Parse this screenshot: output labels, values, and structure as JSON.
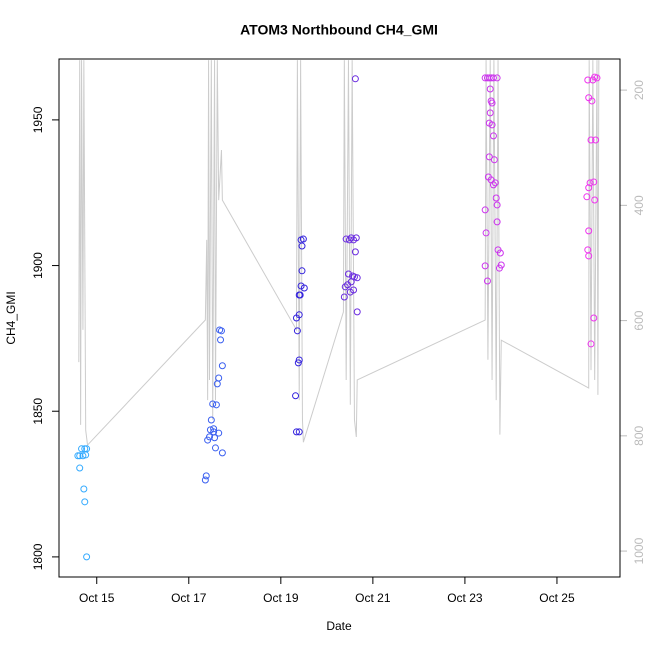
{
  "chart_data": {
    "type": "scatter",
    "title": "ATOM3 Northbound CH4_GMI",
    "x_label": "Date",
    "y_label": "CH4_GMI",
    "xlim": [
      14.18,
      26.37
    ],
    "xticks": [
      {
        "value": 15,
        "label": "Oct 15"
      },
      {
        "value": 17,
        "label": "Oct 17"
      },
      {
        "value": 19,
        "label": "Oct 19"
      },
      {
        "value": 21,
        "label": "Oct 21"
      },
      {
        "value": 23,
        "label": "Oct 23"
      },
      {
        "value": 25,
        "label": "Oct 25"
      }
    ],
    "ylim": [
      1793.1,
      1970.9
    ],
    "yticks": [
      1800,
      1850,
      1900,
      1950
    ],
    "y2lim": [
      1045,
      146
    ],
    "y2ticks": [
      200,
      400,
      600,
      800,
      1000
    ],
    "series": [
      {
        "color": "#33aaff",
        "x": [
          14.63,
          14.67,
          14.74,
          14.78,
          14.7,
          14.76,
          14.63,
          14.72,
          14.74,
          14.78,
          14.59
        ],
        "values": [
          1834.7,
          1837.1,
          1837.1,
          1837.1,
          1834.7,
          1835.0,
          1830.5,
          1823.3,
          1818.9,
          1800.0,
          1834.7
        ]
      },
      {
        "color": "#3a5ff0",
        "x": [
          17.36,
          17.38,
          17.41,
          17.45,
          17.47,
          17.49,
          17.52,
          17.54,
          17.56,
          17.58,
          17.6,
          17.62,
          17.65,
          17.67,
          17.69,
          17.71,
          17.73,
          17.73,
          17.54,
          17.65
        ],
        "values": [
          1826.4,
          1827.8,
          1840.1,
          1841.2,
          1843.6,
          1847.0,
          1852.5,
          1844.0,
          1840.9,
          1837.4,
          1852.2,
          1859.4,
          1861.4,
          1877.9,
          1874.5,
          1877.6,
          1865.6,
          1835.7,
          1842.9,
          1842.5
        ]
      },
      {
        "color": "#3322dd",
        "x": [
          19.32,
          19.34,
          19.36,
          19.38,
          19.4,
          19.34,
          19.4,
          19.4,
          19.4,
          19.42,
          19.44,
          19.46,
          19.44,
          19.46,
          19.49,
          19.51
        ],
        "values": [
          1855.3,
          1882.0,
          1877.6,
          1866.6,
          1867.6,
          1842.9,
          1842.9,
          1883.1,
          1889.9,
          1889.9,
          1893.0,
          1898.2,
          1908.8,
          1906.7,
          1909.1,
          1892.3
        ]
      },
      {
        "color": "#6a2be0",
        "x": [
          20.38,
          20.4,
          20.45,
          20.47,
          20.49,
          20.42,
          20.53,
          20.51,
          20.53,
          20.56,
          20.58,
          20.6,
          20.62,
          20.64,
          20.66,
          20.66,
          20.62,
          20.58
        ],
        "values": [
          1889.2,
          1892.7,
          1893.4,
          1897.1,
          1908.8,
          1909.1,
          1909.5,
          1890.9,
          1894.4,
          1896.4,
          1891.6,
          1896.1,
          1904.7,
          1909.5,
          1895.8,
          1884.1,
          1964.1,
          1908.8
        ]
      },
      {
        "color": "#cc33ee",
        "x": [
          23.44,
          23.49,
          23.53,
          23.57,
          23.62,
          23.7,
          23.44,
          23.46,
          23.44,
          23.49,
          23.51,
          23.53,
          23.55,
          23.57,
          23.53,
          23.59,
          23.62,
          23.57,
          23.62,
          23.66,
          23.64,
          23.68,
          23.7,
          23.7,
          23.72,
          23.77,
          23.79,
          23.75,
          23.59,
          23.55
        ],
        "values": [
          1964.4,
          1964.4,
          1964.4,
          1964.4,
          1964.4,
          1964.4,
          1919.1,
          1911.2,
          1899.9,
          1894.7,
          1930.4,
          1937.3,
          1960.6,
          1956.5,
          1948.9,
          1948.3,
          1944.5,
          1929.4,
          1927.7,
          1928.4,
          1936.3,
          1923.2,
          1920.8,
          1915.0,
          1905.4,
          1904.3,
          1900.2,
          1899.1,
          1955.8,
          1952.4
        ]
      },
      {
        "color": "#ee33ee",
        "x": [
          25.67,
          25.82,
          25.87,
          25.78,
          25.69,
          25.76,
          25.74,
          25.84,
          25.72,
          25.8,
          25.65,
          25.82,
          25.69,
          25.69,
          25.67,
          25.69,
          25.8,
          25.74
        ],
        "values": [
          1963.7,
          1964.7,
          1964.4,
          1963.7,
          1957.6,
          1956.5,
          1943.1,
          1943.1,
          1928.4,
          1928.7,
          1923.6,
          1922.5,
          1926.7,
          1911.9,
          1905.4,
          1903.3,
          1882.0,
          1873.1
        ]
      },
      {
        "type": "line",
        "axis": "y2",
        "color": "#cccccc",
        "x": [
          14.61,
          14.63,
          14.65,
          14.67,
          14.7,
          14.72,
          14.76,
          14.8,
          17.36,
          17.39,
          17.41,
          17.43,
          17.45,
          17.49,
          17.52,
          17.56,
          17.58,
          17.62,
          17.65,
          17.71,
          17.73,
          19.34,
          19.36,
          19.4,
          19.43,
          19.47,
          19.49,
          20.36,
          20.38,
          20.42,
          20.47,
          20.51,
          20.55,
          20.6,
          20.64,
          20.66,
          23.44,
          23.46,
          23.5,
          23.55,
          23.59,
          23.63,
          23.68,
          23.72,
          23.76,
          23.79,
          25.69,
          25.7,
          25.74,
          25.78,
          25.82,
          25.87,
          25.89,
          25.91
        ],
        "values": [
          672,
          148,
          781,
          148,
          616,
          148,
          790,
          816,
          599,
          460,
          738,
          148,
          703,
          148,
          772,
          148,
          738,
          148,
          391,
          304,
          391,
          616,
          148,
          738,
          148,
          772,
          811,
          585,
          148,
          703,
          148,
          746,
          148,
          772,
          802,
          703,
          599,
          148,
          668,
          148,
          703,
          148,
          738,
          148,
          798,
          634,
          717,
          148,
          686,
          148,
          703,
          148,
          729,
          148
        ]
      }
    ]
  }
}
